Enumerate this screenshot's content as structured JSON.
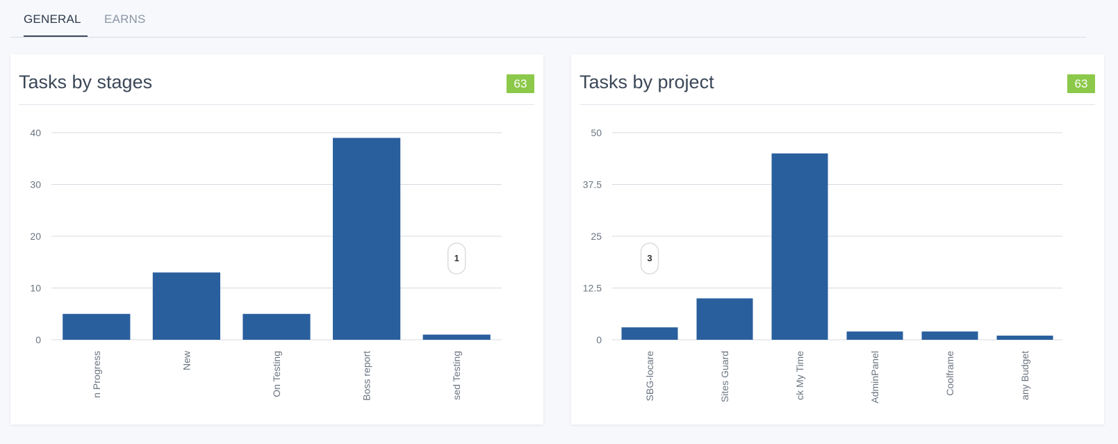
{
  "tabs": [
    {
      "label": "GENERAL",
      "active": true
    },
    {
      "label": "EARNS",
      "active": false
    }
  ],
  "colors": {
    "bar": "#2a5f9e",
    "badge": "#8cc94a",
    "grid": "#d6dae0"
  },
  "cards": [
    {
      "title": "Tasks by stages",
      "badge": "63",
      "tooltip_value": "1",
      "tooltip_category_index": 4
    },
    {
      "title": "Tasks by project",
      "badge": "63",
      "tooltip_value": "3",
      "tooltip_category_index": 0
    }
  ],
  "chart_data": [
    {
      "type": "bar",
      "title": "Tasks by stages",
      "categories": [
        "n Progress",
        "New",
        "On Testing",
        "Boss report",
        "sed Testing"
      ],
      "values": [
        5,
        13,
        5,
        39,
        1
      ],
      "ylim": [
        0,
        40
      ],
      "yticks": [
        0,
        10,
        20,
        30,
        40
      ],
      "ytick_labels": [
        "0",
        "10",
        "20",
        "30",
        "40"
      ],
      "grid": true
    },
    {
      "type": "bar",
      "title": "Tasks by project",
      "categories": [
        "SBG-locare",
        "Sites Guard",
        "ck My Time",
        "AdminPanel",
        "Coolframe",
        "any Budget"
      ],
      "values": [
        3,
        10,
        45,
        2,
        2,
        1
      ],
      "ylim": [
        0,
        50
      ],
      "yticks": [
        0,
        12.5,
        25,
        37.5,
        50
      ],
      "ytick_labels": [
        "0",
        "12.5",
        "25",
        "37.5",
        "50"
      ],
      "grid": true
    }
  ]
}
